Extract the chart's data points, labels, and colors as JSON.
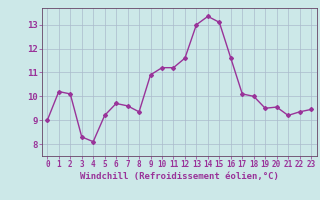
{
  "x": [
    0,
    1,
    2,
    3,
    4,
    5,
    6,
    7,
    8,
    9,
    10,
    11,
    12,
    13,
    14,
    15,
    16,
    17,
    18,
    19,
    20,
    21,
    22,
    23
  ],
  "y": [
    9.0,
    10.2,
    10.1,
    8.3,
    8.1,
    9.2,
    9.7,
    9.6,
    9.35,
    10.9,
    11.2,
    11.2,
    11.6,
    13.0,
    13.35,
    13.1,
    11.6,
    10.1,
    10.0,
    9.5,
    9.55,
    9.2,
    9.35,
    9.45
  ],
  "line_color": "#993399",
  "marker": "D",
  "marker_size": 2.0,
  "line_width": 1.0,
  "xlabel": "Windchill (Refroidissement éolien,°C)",
  "xlabel_fontsize": 6.5,
  "ylim": [
    7.5,
    13.7
  ],
  "xlim": [
    -0.5,
    23.5
  ],
  "yticks": [
    8,
    9,
    10,
    11,
    12,
    13
  ],
  "xticks": [
    0,
    1,
    2,
    3,
    4,
    5,
    6,
    7,
    8,
    9,
    10,
    11,
    12,
    13,
    14,
    15,
    16,
    17,
    18,
    19,
    20,
    21,
    22,
    23
  ],
  "xtick_fontsize": 5.5,
  "ytick_fontsize": 6.5,
  "bg_color": "#cce8e8",
  "grid_color": "#aabbcc",
  "spine_color": "#664466"
}
